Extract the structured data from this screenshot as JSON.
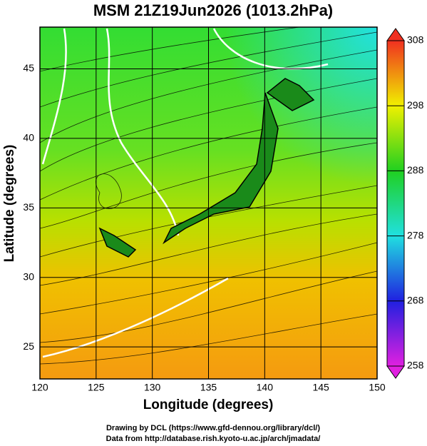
{
  "title": "MSM 21Z19Jun2026 (1013.2hPa)",
  "x_axis": {
    "label": "Longitude (degrees)",
    "lim": [
      120,
      150
    ],
    "ticks": [
      120,
      125,
      130,
      135,
      140,
      145,
      150
    ]
  },
  "y_axis": {
    "label": "Latitude  (degrees)",
    "lim": [
      22.7,
      48
    ],
    "ticks": [
      25,
      30,
      35,
      40,
      45
    ]
  },
  "colorbar": {
    "lim": [
      258,
      308
    ],
    "ticks": [
      258,
      268,
      278,
      288,
      298,
      308
    ]
  },
  "credits": [
    "Drawing by DCL (https://www.gfd-dennou.org/library/dcl/)",
    "Data from http://database.rish.kyoto-u.ac.jp/arch/jmadata/"
  ]
}
